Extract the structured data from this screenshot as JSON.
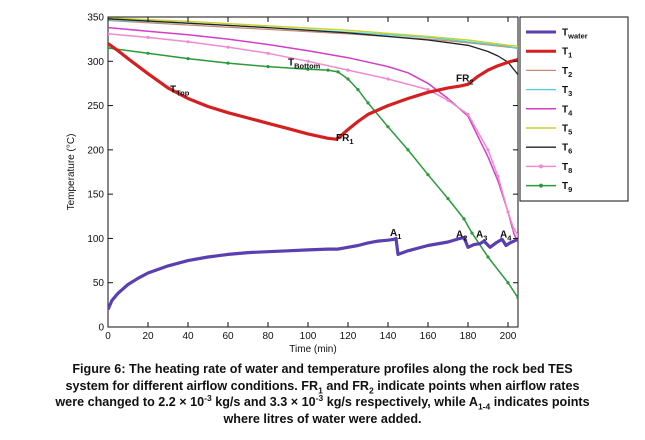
{
  "chart_data": {
    "type": "line",
    "title": "",
    "xlabel": "Time (min)",
    "ylabel": "Temperature (°C)",
    "xlim": [
      0,
      205
    ],
    "ylim": [
      0,
      350
    ],
    "xticks": [
      0,
      20,
      40,
      60,
      80,
      100,
      120,
      140,
      160,
      180,
      200
    ],
    "yticks": [
      0,
      50,
      100,
      150,
      200,
      250,
      300,
      350
    ],
    "grid": false,
    "legend_position": "right",
    "series": [
      {
        "name": "T_water",
        "label_main": "T",
        "label_sub": "water",
        "color": "#5a3fb0",
        "width": 3.2,
        "points": [
          [
            0,
            20
          ],
          [
            2,
            30
          ],
          [
            5,
            38
          ],
          [
            10,
            48
          ],
          [
            15,
            55
          ],
          [
            20,
            61
          ],
          [
            30,
            69
          ],
          [
            40,
            75
          ],
          [
            50,
            79
          ],
          [
            60,
            82
          ],
          [
            70,
            84
          ],
          [
            80,
            85
          ],
          [
            90,
            86
          ],
          [
            100,
            87
          ],
          [
            110,
            88
          ],
          [
            115,
            88
          ],
          [
            120,
            90
          ],
          [
            125,
            92
          ],
          [
            130,
            95
          ],
          [
            135,
            97
          ],
          [
            140,
            98
          ],
          [
            143,
            99
          ],
          [
            144,
            100
          ],
          [
            145,
            82
          ],
          [
            150,
            86
          ],
          [
            160,
            92
          ],
          [
            170,
            96
          ],
          [
            176,
            100
          ],
          [
            178,
            101
          ],
          [
            180,
            90
          ],
          [
            183,
            93
          ],
          [
            186,
            94
          ],
          [
            188,
            97
          ],
          [
            191,
            90
          ],
          [
            194,
            95
          ],
          [
            197,
            99
          ],
          [
            199,
            92
          ],
          [
            201,
            95
          ],
          [
            203,
            97
          ],
          [
            205,
            99
          ]
        ]
      },
      {
        "name": "T_1",
        "label_main": "T",
        "label_sub": "1",
        "color": "#d42020",
        "width": 3.2,
        "points": [
          [
            0,
            320
          ],
          [
            5,
            312
          ],
          [
            10,
            303
          ],
          [
            20,
            286
          ],
          [
            30,
            270
          ],
          [
            40,
            258
          ],
          [
            50,
            249
          ],
          [
            60,
            242
          ],
          [
            70,
            236
          ],
          [
            80,
            230
          ],
          [
            90,
            224
          ],
          [
            100,
            218
          ],
          [
            110,
            213
          ],
          [
            114,
            212
          ],
          [
            116,
            215
          ],
          [
            120,
            223
          ],
          [
            125,
            232
          ],
          [
            130,
            240
          ],
          [
            140,
            250
          ],
          [
            150,
            258
          ],
          [
            160,
            265
          ],
          [
            170,
            270
          ],
          [
            176,
            272
          ],
          [
            180,
            274
          ],
          [
            185,
            283
          ],
          [
            190,
            290
          ],
          [
            195,
            295
          ],
          [
            200,
            299
          ],
          [
            205,
            302
          ]
        ]
      },
      {
        "name": "T_2",
        "label_main": "T",
        "label_sub": "2",
        "color": "#c58a78",
        "width": 1.3,
        "points": [
          [
            0,
            346
          ],
          [
            40,
            341
          ],
          [
            80,
            336
          ],
          [
            120,
            331
          ],
          [
            160,
            325
          ],
          [
            180,
            321
          ],
          [
            200,
            316
          ],
          [
            205,
            315
          ]
        ]
      },
      {
        "name": "T_3",
        "label_main": "T",
        "label_sub": "3",
        "color": "#4fd2d6",
        "width": 1.3,
        "points": [
          [
            0,
            347
          ],
          [
            40,
            343
          ],
          [
            80,
            338
          ],
          [
            120,
            333
          ],
          [
            160,
            327
          ],
          [
            180,
            322
          ],
          [
            200,
            317
          ],
          [
            205,
            314
          ]
        ]
      },
      {
        "name": "T_4",
        "label_main": "T",
        "label_sub": "4",
        "color": "#d43ec8",
        "width": 1.5,
        "points": [
          [
            0,
            338
          ],
          [
            20,
            334
          ],
          [
            40,
            330
          ],
          [
            60,
            325
          ],
          [
            80,
            319
          ],
          [
            100,
            312
          ],
          [
            120,
            304
          ],
          [
            140,
            294
          ],
          [
            150,
            287
          ],
          [
            160,
            275
          ],
          [
            170,
            258
          ],
          [
            180,
            238
          ],
          [
            190,
            192
          ],
          [
            195,
            165
          ],
          [
            200,
            130
          ],
          [
            203,
            105
          ],
          [
            205,
            96
          ]
        ]
      },
      {
        "name": "T_5",
        "label_main": "T",
        "label_sub": "5",
        "color": "#c8d232",
        "width": 1.5,
        "points": [
          [
            0,
            349
          ],
          [
            40,
            345
          ],
          [
            80,
            340
          ],
          [
            120,
            335
          ],
          [
            160,
            328
          ],
          [
            180,
            324
          ],
          [
            200,
            318
          ],
          [
            205,
            317
          ]
        ]
      },
      {
        "name": "T_6",
        "label_main": "T",
        "label_sub": "6",
        "color": "#222222",
        "width": 1.3,
        "points": [
          [
            0,
            348
          ],
          [
            40,
            343
          ],
          [
            80,
            338
          ],
          [
            120,
            332
          ],
          [
            160,
            324
          ],
          [
            180,
            318
          ],
          [
            190,
            311
          ],
          [
            195,
            306
          ],
          [
            200,
            299
          ],
          [
            205,
            285
          ]
        ]
      },
      {
        "name": "T_8",
        "label_main": "T",
        "label_sub": "8",
        "color": "#f08ad2",
        "width": 1.5,
        "points": [
          [
            0,
            331
          ],
          [
            20,
            327
          ],
          [
            40,
            322
          ],
          [
            60,
            316
          ],
          [
            80,
            309
          ],
          [
            100,
            300
          ],
          [
            120,
            290
          ],
          [
            140,
            280
          ],
          [
            160,
            268
          ],
          [
            170,
            256
          ],
          [
            180,
            240
          ],
          [
            190,
            200
          ],
          [
            195,
            170
          ],
          [
            200,
            130
          ],
          [
            203,
            110
          ],
          [
            205,
            104
          ]
        ]
      },
      {
        "name": "T_9",
        "label_main": "T",
        "label_sub": "9",
        "color": "#2a9a3a",
        "width": 1.5,
        "points": [
          [
            0,
            315
          ],
          [
            20,
            309
          ],
          [
            40,
            303
          ],
          [
            60,
            298
          ],
          [
            80,
            294
          ],
          [
            100,
            291
          ],
          [
            110,
            290
          ],
          [
            115,
            288
          ],
          [
            120,
            280
          ],
          [
            125,
            268
          ],
          [
            130,
            253
          ],
          [
            140,
            226
          ],
          [
            150,
            200
          ],
          [
            160,
            172
          ],
          [
            170,
            145
          ],
          [
            178,
            122
          ],
          [
            182,
            106
          ],
          [
            190,
            79
          ],
          [
            200,
            50
          ],
          [
            205,
            33
          ]
        ]
      }
    ],
    "annotations": [
      {
        "id": "t-top",
        "main": "T",
        "sub": "Top",
        "x": 31,
        "y": 265
      },
      {
        "id": "t-bottom",
        "main": "T",
        "sub": "Bottom",
        "x": 90,
        "y": 295
      },
      {
        "id": "fr1",
        "main": "FR",
        "sub": "1",
        "x": 114,
        "y": 210
      },
      {
        "id": "fr2",
        "main": "FR",
        "sub": "2",
        "x": 174,
        "y": 277
      },
      {
        "id": "a1",
        "main": "A",
        "sub": "1",
        "x": 141,
        "y": 103
      },
      {
        "id": "a2",
        "main": "A",
        "sub": "2",
        "x": 174,
        "y": 101
      },
      {
        "id": "a3",
        "main": "A",
        "sub": "3",
        "x": 184,
        "y": 101
      },
      {
        "id": "a4",
        "main": "A",
        "sub": "4",
        "x": 196,
        "y": 101
      }
    ]
  },
  "caption": {
    "parts": [
      {
        "t": "Figure 6: The heating rate of water and temperature profiles along the rock bed TES"
      },
      {
        "br": true
      },
      {
        "t": "system for different airflow conditions. FR"
      },
      {
        "sub": "1"
      },
      {
        "t": " and FR"
      },
      {
        "sub": "2"
      },
      {
        "t": " indicate points when airflow rates"
      },
      {
        "br": true
      },
      {
        "t": "were changed to 2.2 × 10"
      },
      {
        "sup": "-3"
      },
      {
        "t": " kg/s and 3.3 × 10"
      },
      {
        "sup": "-3"
      },
      {
        "t": " kg/s respectively, while A"
      },
      {
        "sub": "1-4"
      },
      {
        "t": " indicates points"
      },
      {
        "br": true
      },
      {
        "t": "where litres of water were added."
      }
    ]
  }
}
